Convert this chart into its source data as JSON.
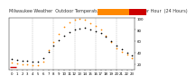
{
  "title": "Milwaukee Weather  Outdoor Temperature  vs THSW Index  per Hour  (24 Hours)",
  "background_color": "#ffffff",
  "grid_color": "#aaaaaa",
  "xlim": [
    -0.5,
    23.5
  ],
  "ylim": [
    10,
    100
  ],
  "yticks": [
    20,
    40,
    60,
    80,
    100
  ],
  "ytick_labels": [
    "20",
    "40",
    "60",
    "80",
    "100"
  ],
  "xticks": [
    0,
    1,
    2,
    3,
    4,
    5,
    6,
    7,
    8,
    9,
    10,
    11,
    12,
    13,
    14,
    15,
    16,
    17,
    18,
    19,
    20,
    21,
    22,
    23
  ],
  "xtick_labels": [
    "0",
    "1",
    "2",
    "3",
    "4",
    "5",
    "6",
    "7",
    "8",
    "9",
    "10",
    "11",
    "12",
    "13",
    "14",
    "15",
    "16",
    "17",
    "18",
    "19",
    "20",
    "21",
    "22",
    "23"
  ],
  "temp_hours": [
    0,
    1,
    2,
    3,
    4,
    5,
    6,
    7,
    8,
    9,
    10,
    11,
    12,
    13,
    14,
    15,
    16,
    17,
    18,
    19,
    20,
    21,
    22,
    23
  ],
  "temp_values": [
    28,
    27,
    26,
    25,
    24,
    24,
    30,
    42,
    52,
    62,
    70,
    76,
    80,
    82,
    83,
    81,
    78,
    74,
    68,
    60,
    52,
    46,
    40,
    35
  ],
  "thsw_hours": [
    0,
    1,
    2,
    3,
    4,
    5,
    6,
    7,
    8,
    9,
    10,
    11,
    12,
    13,
    14,
    15,
    16,
    17,
    18,
    19,
    20,
    21,
    22,
    23
  ],
  "thsw_values": [
    22,
    21,
    20,
    19,
    18,
    18,
    24,
    44,
    58,
    72,
    85,
    93,
    97,
    99,
    97,
    92,
    86,
    80,
    70,
    58,
    47,
    41,
    36,
    30
  ],
  "temp_color": "#000000",
  "thsw_color": "#ff8800",
  "legend_line_color": "#cc0000",
  "legend_bar_color1": "#ff8800",
  "legend_bar_color2": "#cc0000",
  "vgrid_positions": [
    4,
    8,
    12,
    16,
    20
  ],
  "title_fontsize": 3.5,
  "tick_fontsize": 2.8,
  "marker_size": 1.5
}
